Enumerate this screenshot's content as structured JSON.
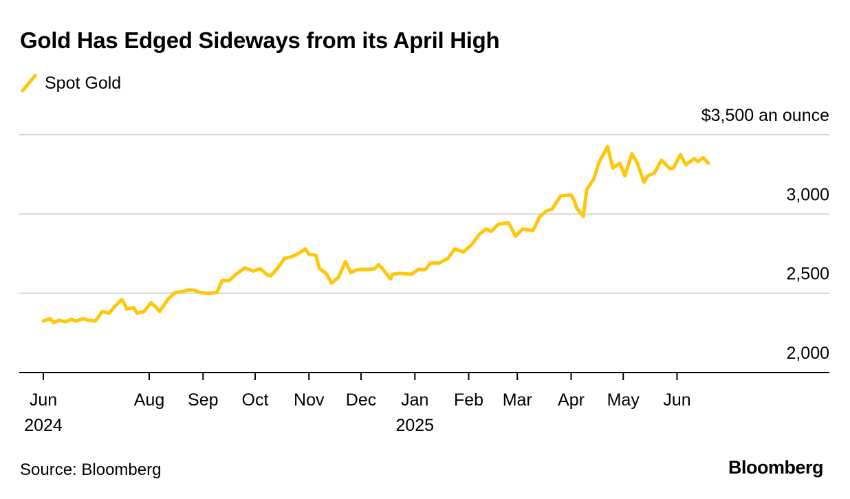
{
  "header": {
    "title": "Gold Has Edged Sideways from its April High"
  },
  "footer": {
    "source": "Source: Bloomberg",
    "brand": "Bloomberg"
  },
  "chart_data": {
    "type": "line",
    "title": "Gold Has Edged Sideways from its April High",
    "ylabel": "$3,500 an ounce",
    "ylim": [
      2000,
      3500
    ],
    "yticks": [
      {
        "value": 2000,
        "label": "2,000"
      },
      {
        "value": 2500,
        "label": "2,500"
      },
      {
        "value": 3000,
        "label": "3,000"
      },
      {
        "value": 3500,
        "label": "$3,500 an ounce"
      }
    ],
    "xlim": [
      "2024-06-01",
      "2025-07-12"
    ],
    "xticks": [
      {
        "date": "2024-06-01",
        "label": "Jun",
        "year": "2024"
      },
      {
        "date": "2024-08-01",
        "label": "Aug",
        "year": ""
      },
      {
        "date": "2024-09-01",
        "label": "Sep",
        "year": ""
      },
      {
        "date": "2024-10-01",
        "label": "Oct",
        "year": ""
      },
      {
        "date": "2024-11-01",
        "label": "Nov",
        "year": ""
      },
      {
        "date": "2024-12-01",
        "label": "Dec",
        "year": ""
      },
      {
        "date": "2025-01-01",
        "label": "Jan",
        "year": "2025"
      },
      {
        "date": "2025-02-01",
        "label": "Feb",
        "year": ""
      },
      {
        "date": "2025-03-01",
        "label": "Mar",
        "year": ""
      },
      {
        "date": "2025-04-01",
        "label": "Apr",
        "year": ""
      },
      {
        "date": "2025-05-01",
        "label": "May",
        "year": ""
      },
      {
        "date": "2025-06-01",
        "label": "Jun",
        "year": ""
      }
    ],
    "grid": true,
    "legend_position": "top-left",
    "series": [
      {
        "name": "Spot Gold",
        "color": "#FFC60B",
        "x": [
          "2024-06-01",
          "2024-06-05",
          "2024-06-07",
          "2024-06-10",
          "2024-06-14",
          "2024-06-17",
          "2024-06-20",
          "2024-06-24",
          "2024-06-27",
          "2024-07-01",
          "2024-07-05",
          "2024-07-09",
          "2024-07-12",
          "2024-07-16",
          "2024-07-17",
          "2024-07-19",
          "2024-07-23",
          "2024-07-25",
          "2024-07-29",
          "2024-08-02",
          "2024-08-05",
          "2024-08-07",
          "2024-08-12",
          "2024-08-16",
          "2024-08-20",
          "2024-08-23",
          "2024-08-27",
          "2024-08-30",
          "2024-09-04",
          "2024-09-09",
          "2024-09-12",
          "2024-09-16",
          "2024-09-20",
          "2024-09-25",
          "2024-09-30",
          "2024-10-04",
          "2024-10-08",
          "2024-10-10",
          "2024-10-14",
          "2024-10-18",
          "2024-10-22",
          "2024-10-25",
          "2024-10-30",
          "2024-11-01",
          "2024-11-05",
          "2024-11-07",
          "2024-11-11",
          "2024-11-14",
          "2024-11-18",
          "2024-11-22",
          "2024-11-25",
          "2024-11-29",
          "2024-12-04",
          "2024-12-09",
          "2024-12-11",
          "2024-12-13",
          "2024-12-18",
          "2024-12-19",
          "2024-12-23",
          "2024-12-30",
          "2025-01-03",
          "2025-01-07",
          "2025-01-10",
          "2025-01-15",
          "2025-01-20",
          "2025-01-24",
          "2025-01-29",
          "2025-02-03",
          "2025-02-07",
          "2025-02-11",
          "2025-02-14",
          "2025-02-18",
          "2025-02-24",
          "2025-02-28",
          "2025-03-04",
          "2025-03-10",
          "2025-03-14",
          "2025-03-18",
          "2025-03-21",
          "2025-03-26",
          "2025-04-01",
          "2025-04-03",
          "2025-04-04",
          "2025-04-08",
          "2025-04-10",
          "2025-04-14",
          "2025-04-17",
          "2025-04-22",
          "2025-04-25",
          "2025-04-29",
          "2025-05-02",
          "2025-05-06",
          "2025-05-09",
          "2025-05-13",
          "2025-05-15",
          "2025-05-19",
          "2025-05-23",
          "2025-05-28",
          "2025-05-30",
          "2025-06-03",
          "2025-06-06",
          "2025-06-11",
          "2025-06-13",
          "2025-06-16",
          "2025-06-19"
        ],
        "values": [
          2325,
          2340,
          2315,
          2330,
          2320,
          2335,
          2325,
          2340,
          2330,
          2325,
          2385,
          2375,
          2415,
          2460,
          2450,
          2400,
          2410,
          2375,
          2385,
          2440,
          2410,
          2385,
          2465,
          2505,
          2510,
          2520,
          2520,
          2505,
          2500,
          2505,
          2580,
          2580,
          2620,
          2660,
          2640,
          2655,
          2615,
          2610,
          2660,
          2720,
          2730,
          2745,
          2780,
          2745,
          2740,
          2655,
          2625,
          2565,
          2600,
          2700,
          2630,
          2650,
          2650,
          2655,
          2680,
          2660,
          2590,
          2620,
          2625,
          2620,
          2650,
          2650,
          2690,
          2690,
          2720,
          2780,
          2760,
          2810,
          2870,
          2905,
          2890,
          2935,
          2945,
          2860,
          2905,
          2895,
          2985,
          3020,
          3030,
          3115,
          3120,
          3080,
          3040,
          2985,
          3155,
          3220,
          3325,
          3425,
          3290,
          3320,
          3240,
          3380,
          3325,
          3200,
          3240,
          3260,
          3340,
          3285,
          3290,
          3375,
          3310,
          3350,
          3330,
          3355,
          3320
        ]
      }
    ]
  }
}
